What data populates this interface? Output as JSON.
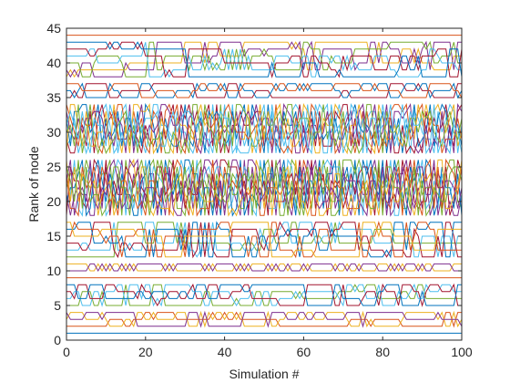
{
  "chart_data": {
    "type": "line",
    "title": "",
    "xlabel": "Simulation #",
    "ylabel": "Rank of node",
    "xlim": [
      0,
      100
    ],
    "ylim": [
      0,
      45
    ],
    "xticks": [
      0,
      20,
      40,
      60,
      80,
      100
    ],
    "yticks": [
      0,
      5,
      10,
      15,
      20,
      25,
      30,
      35,
      40,
      45
    ],
    "grid": false,
    "legend": "none",
    "x": "integers 0..100 (one rank per simulation)",
    "series_count": 44,
    "bands": [
      {
        "ranks": [
          1
        ],
        "behavior": "constant"
      },
      {
        "ranks": [
          2,
          3,
          4
        ],
        "behavior": "swap within group"
      },
      {
        "ranks": [
          5,
          6,
          7,
          8
        ],
        "behavior": "swap within group"
      },
      {
        "ranks": [
          9
        ],
        "behavior": "constant"
      },
      {
        "ranks": [
          10,
          11
        ],
        "behavior": "swap within group"
      },
      {
        "ranks": [
          12,
          13,
          14,
          15,
          16,
          17
        ],
        "behavior": "swap within group"
      },
      {
        "ranks": [
          18,
          19,
          20,
          21,
          22,
          23,
          24,
          25,
          26
        ],
        "behavior": "heavily mixed"
      },
      {
        "ranks": [
          27,
          28,
          29,
          30,
          31,
          32,
          33,
          34
        ],
        "behavior": "heavily mixed"
      },
      {
        "ranks": [
          35,
          36,
          37
        ],
        "behavior": "swap within group"
      },
      {
        "ranks": [
          38,
          39,
          40,
          41,
          42,
          43
        ],
        "behavior": "swap within group"
      },
      {
        "ranks": [
          44
        ],
        "behavior": "constant"
      }
    ],
    "colors": [
      "#0072BD",
      "#D95319",
      "#EDB120",
      "#7E2F8E",
      "#77AC30",
      "#4DBEEE",
      "#A2142F"
    ]
  }
}
